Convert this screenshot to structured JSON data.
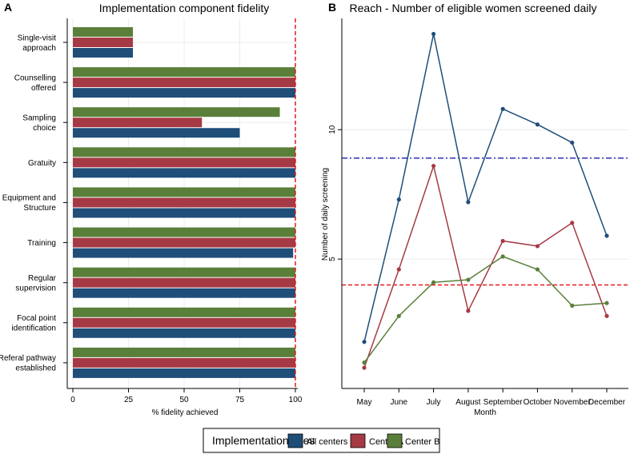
{
  "panel_a_letter": "A",
  "panel_b_letter": "B",
  "chart_data": [
    {
      "type": "bar",
      "orientation": "horizontal",
      "title": "Implementation component fidelity",
      "xlabel": "% fidelity achieved",
      "ylabel": "",
      "xlim": [
        0,
        100
      ],
      "xticks": [
        0,
        25,
        50,
        75,
        100
      ],
      "grid": true,
      "reference_line": {
        "value": 100,
        "color": "#e41a1c",
        "style": "dashed"
      },
      "categories": [
        [
          "Single-visit",
          "approach"
        ],
        [
          "Counselling",
          "offered"
        ],
        [
          "Sampling",
          "choice"
        ],
        [
          "Gratuity"
        ],
        [
          "Equipment and",
          "Structure"
        ],
        [
          "Training"
        ],
        [
          "Regular",
          "supervision"
        ],
        [
          "Focal point",
          "identification"
        ],
        [
          "Referal pathway",
          "established"
        ]
      ],
      "series": [
        {
          "name": "Center B",
          "color": "#5a7f3a",
          "values": [
            27,
            100,
            93,
            100,
            100,
            100,
            100,
            100,
            100
          ]
        },
        {
          "name": "Center A",
          "color": "#a63a44",
          "values": [
            27,
            100,
            58,
            100,
            100,
            100,
            100,
            100,
            100
          ]
        },
        {
          "name": "All centers",
          "color": "#1f4e79",
          "values": [
            27,
            100,
            75,
            100,
            100,
            99,
            100,
            100,
            100
          ]
        }
      ]
    },
    {
      "type": "line",
      "title": "Reach - Number of eligible women screened daily",
      "xlabel": "Month",
      "ylabel": "Number of daily screening",
      "categories": [
        "May",
        "June",
        "July",
        "August",
        "September",
        "October",
        "November",
        "December"
      ],
      "ylim": [
        0,
        14.3
      ],
      "yticks": [
        5,
        10
      ],
      "grid": true,
      "reference_lines": [
        {
          "value": 8.9,
          "color": "#1a1ab3",
          "style": "dashdot"
        },
        {
          "value": 4.0,
          "color": "#e41a1c",
          "style": "dashed"
        }
      ],
      "series": [
        {
          "name": "All centers",
          "color": "#1f4e79",
          "values": [
            1.8,
            7.3,
            13.7,
            7.2,
            10.8,
            10.2,
            9.5,
            5.9
          ]
        },
        {
          "name": "Center A",
          "color": "#a63a44",
          "values": [
            0.8,
            4.6,
            8.6,
            3.0,
            5.7,
            5.5,
            6.4,
            2.8
          ]
        },
        {
          "name": "Center B",
          "color": "#5a7f3a",
          "values": [
            1.0,
            2.8,
            4.1,
            4.2,
            5.1,
            4.6,
            3.2,
            3.3
          ]
        }
      ]
    }
  ],
  "legend": {
    "title": "Implementation sites",
    "items": [
      {
        "label": "All centers",
        "color": "#1f4e79"
      },
      {
        "label": "Center A",
        "color": "#a63a44"
      },
      {
        "label": "Center B",
        "color": "#5a7f3a"
      }
    ]
  }
}
